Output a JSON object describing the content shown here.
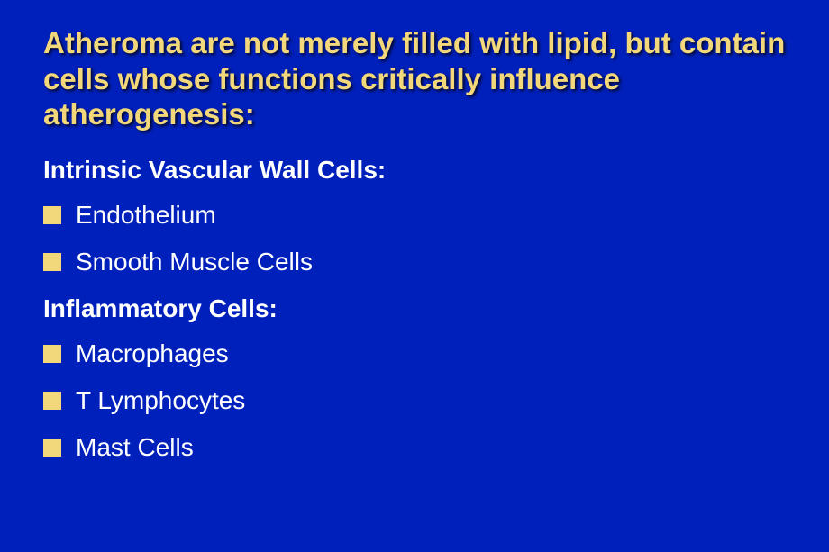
{
  "slide": {
    "background_color": "#0020bb",
    "title": {
      "text": "Atheroma are not merely filled with lipid, but contain cells whose functions critically influence atherogenesis:",
      "color": "#f2d87a",
      "fontsize": 33,
      "fontweight": "bold",
      "shadow": "2px 2px 3px rgba(0,0,0,0.8)"
    },
    "sections": [
      {
        "heading": "Intrinsic Vascular Wall Cells:",
        "heading_color": "#ffffff",
        "heading_fontsize": 28,
        "bullets": [
          {
            "text": "Endothelium"
          },
          {
            "text": "Smooth Muscle Cells"
          }
        ]
      },
      {
        "heading": "Inflammatory Cells:",
        "heading_color": "#ffffff",
        "heading_fontsize": 28,
        "bullets": [
          {
            "text": "Macrophages"
          },
          {
            "text": "T Lymphocytes"
          },
          {
            "text": "Mast Cells"
          }
        ]
      }
    ],
    "bullet_style": {
      "marker_color": "#f2d87a",
      "marker_size": 20,
      "text_color": "#ffffff",
      "text_fontsize": 28
    }
  }
}
